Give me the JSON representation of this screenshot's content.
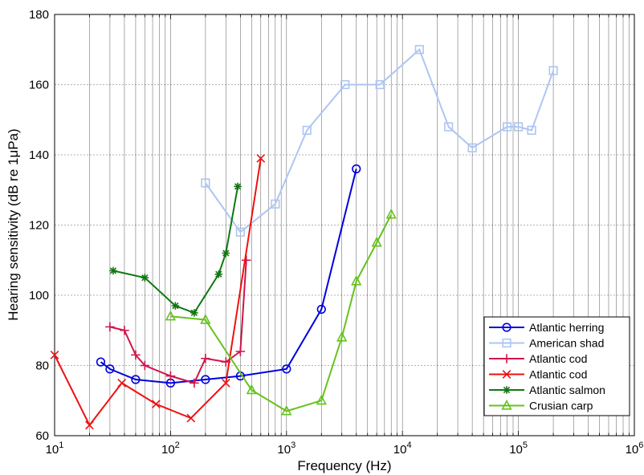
{
  "chart_data": {
    "type": "line",
    "xscale": "log",
    "xlim": [
      10,
      1000000
    ],
    "ylim": [
      60,
      180
    ],
    "xlabel": "Frequency (Hz)",
    "ylabel": "Hearing sensitivity (dB re 1μPa)",
    "grid": true,
    "legend_position": "bottom-right",
    "x_ticks": [
      {
        "value": 10,
        "base": "10",
        "exp": "1"
      },
      {
        "value": 100,
        "base": "10",
        "exp": "2"
      },
      {
        "value": 1000,
        "base": "10",
        "exp": "3"
      },
      {
        "value": 10000,
        "base": "10",
        "exp": "4"
      },
      {
        "value": 100000,
        "base": "10",
        "exp": "5"
      },
      {
        "value": 1000000,
        "base": "10",
        "exp": "6"
      }
    ],
    "y_ticks": [
      "60",
      "80",
      "100",
      "120",
      "140",
      "160",
      "180"
    ],
    "series": [
      {
        "name": "Atlantic herring",
        "color": "#0000dd",
        "marker": "circle",
        "x": [
          25,
          30,
          50,
          100,
          200,
          400,
          1000,
          2000,
          4000
        ],
        "y": [
          81,
          79,
          76,
          75,
          76,
          77,
          79,
          96,
          136
        ]
      },
      {
        "name": "American shad",
        "color": "#aec6f2",
        "marker": "square",
        "x": [
          200,
          400,
          800,
          1500,
          3200,
          6400,
          14000,
          25000,
          40000,
          80000,
          100000,
          130000,
          200000
        ],
        "y": [
          132,
          118,
          126,
          147,
          160,
          160,
          170,
          148,
          142,
          148,
          148,
          147,
          164
        ]
      },
      {
        "name": "Atlantic cod",
        "color": "#d0144a",
        "marker": "plus",
        "x": [
          30,
          40,
          50,
          60,
          100,
          160,
          200,
          300,
          400,
          450
        ],
        "y": [
          91,
          90,
          83,
          80,
          77,
          75,
          82,
          81,
          84,
          110
        ]
      },
      {
        "name": "Atlantic cod",
        "color": "#ee1111",
        "marker": "x",
        "x": [
          10,
          20,
          38,
          75,
          150,
          300,
          600
        ],
        "y": [
          83,
          63,
          75,
          69,
          65,
          75,
          139
        ]
      },
      {
        "name": "Atlantic salmon",
        "color": "#117711",
        "marker": "star",
        "x": [
          32,
          60,
          110,
          160,
          260,
          300,
          380
        ],
        "y": [
          107,
          105,
          97,
          95,
          106,
          112,
          131
        ]
      },
      {
        "name": "Crusian carp",
        "color": "#66c21c",
        "marker": "triangle",
        "x": [
          100,
          200,
          500,
          1000,
          2000,
          3000,
          4000,
          6000,
          8000
        ],
        "y": [
          94,
          93,
          73,
          67,
          70,
          88,
          104,
          115,
          123
        ]
      }
    ]
  }
}
